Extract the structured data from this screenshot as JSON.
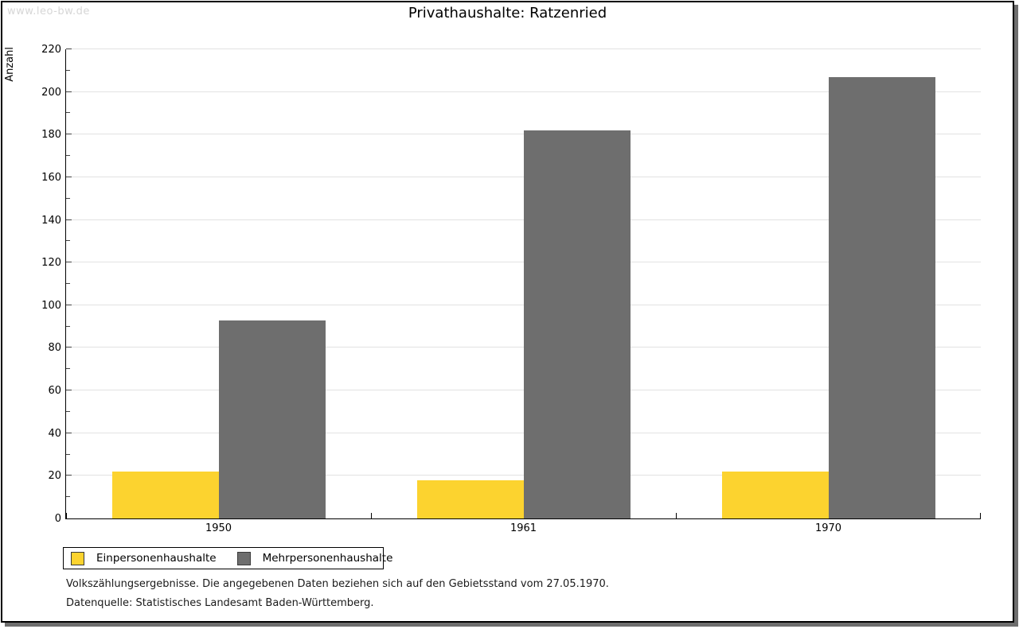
{
  "watermark": "www.leo-bw.de",
  "header": {
    "title": "Privathaushalte: Ratzenried"
  },
  "chart_data": {
    "type": "bar",
    "title": "Privathaushalte: Ratzenried",
    "xlabel": "",
    "ylabel": "Anzahl",
    "categories": [
      "1950",
      "1961",
      "1970"
    ],
    "series": [
      {
        "name": "Einpersonenhaushalte",
        "color": "#FCD32F",
        "values": [
          22,
          18,
          22
        ]
      },
      {
        "name": "Mehrpersonenhaushalte",
        "color": "#6E6E6E",
        "values": [
          93,
          182,
          207
        ]
      }
    ],
    "ylim": [
      0,
      220
    ],
    "ytick_step": 20,
    "yminor_step": 10,
    "grid": true,
    "gridline_color": "#e2e2e2",
    "legend_position": "bottom-left"
  },
  "footer": {
    "line1": "Volkszählungsergebnisse. Die angegebenen Daten beziehen sich auf den Gebietsstand vom 27.05.1970.",
    "line2": "Datenquelle: Statistisches Landesamt Baden-Württemberg."
  }
}
